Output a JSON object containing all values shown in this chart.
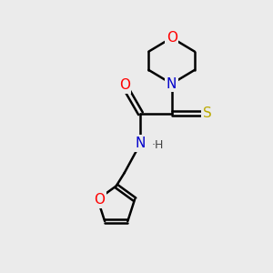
{
  "background_color": "#ebebeb",
  "atom_colors": {
    "C": "#000000",
    "N": "#0000cc",
    "O": "#ff0000",
    "S": "#bbaa00",
    "H": "#444444"
  },
  "bond_color": "#000000",
  "bond_width": 1.8,
  "figsize": [
    3.0,
    3.0
  ],
  "dpi": 100,
  "xlim": [
    0,
    10
  ],
  "ylim": [
    0,
    10
  ]
}
